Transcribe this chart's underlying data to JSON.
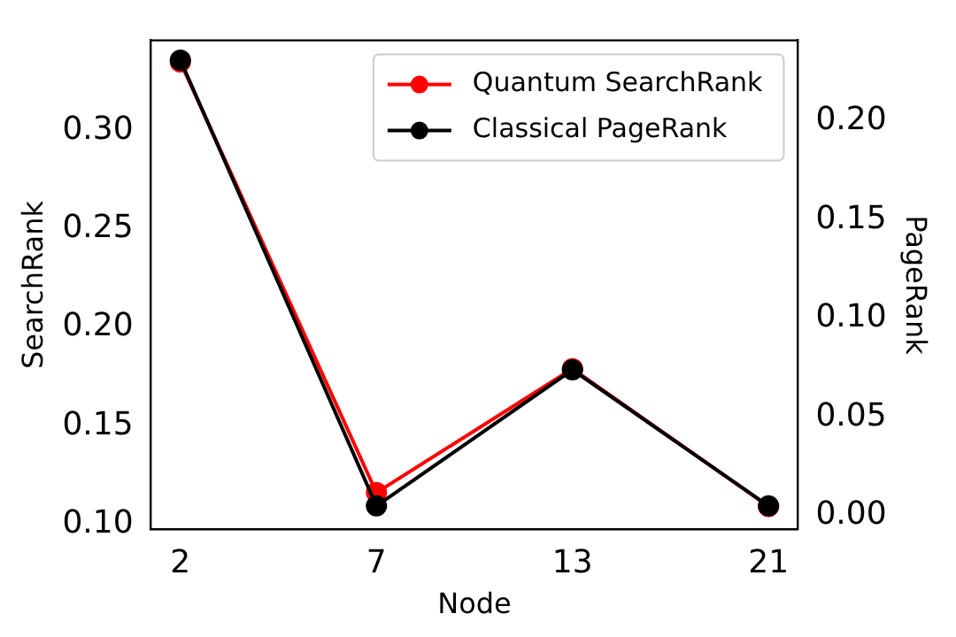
{
  "chart_data": {
    "type": "line",
    "xlabel": "Node",
    "ylabel": "SearchRank",
    "y2label": "PageRank",
    "categories": [
      "2",
      "7",
      "13",
      "21"
    ],
    "series": [
      {
        "name": "Quantum SearchRank",
        "color": "#ff0000",
        "values": [
          0.335,
          0.116,
          0.179,
          0.109
        ]
      },
      {
        "name": "Classical PageRank",
        "color": "#000000",
        "axis": "y2",
        "values": [
          0.231,
          0.005,
          0.074,
          0.005
        ]
      }
    ],
    "ylim": [
      0.0973,
      0.346
    ],
    "yticks": [
      {
        "value": 0.1,
        "label": "0.10"
      },
      {
        "value": 0.15,
        "label": "0.15"
      },
      {
        "value": 0.2,
        "label": "0.20"
      },
      {
        "value": 0.25,
        "label": "0.25"
      },
      {
        "value": 0.3,
        "label": "0.30"
      }
    ],
    "y2lim": [
      -0.0069,
      0.241
    ],
    "y2ticks": [
      {
        "value": 0,
        "label": "0.00"
      },
      {
        "value": 0.05,
        "label": "0.05"
      },
      {
        "value": 0.1,
        "label": "0.10"
      },
      {
        "value": 0.15,
        "label": "0.15"
      },
      {
        "value": 0.2,
        "label": "0.20"
      }
    ],
    "legend": "top right",
    "marker": "circle",
    "line_style": "solid"
  }
}
